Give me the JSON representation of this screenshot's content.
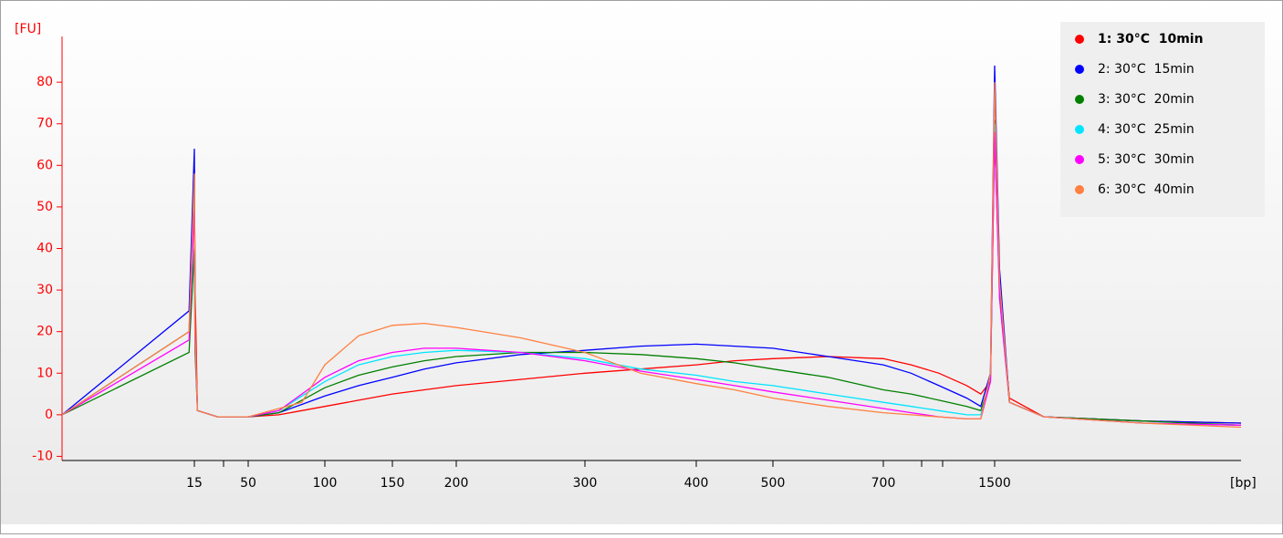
{
  "chart_data": {
    "type": "line",
    "ylabel": "[FU]",
    "xlabel": "[bp]",
    "x": [
      10,
      14.8,
      15,
      15.5,
      17,
      30,
      50,
      70,
      85,
      100,
      125,
      150,
      175,
      200,
      250,
      300,
      350,
      400,
      450,
      500,
      600,
      700,
      900,
      1100,
      1300,
      1400,
      1470,
      1500,
      1510,
      1530,
      1600,
      1800,
      2000
    ],
    "xlim": [
      10,
      2000
    ],
    "xticks": [
      15,
      50,
      100,
      150,
      200,
      300,
      400,
      500,
      700,
      1500
    ],
    "ylim": [
      -11,
      91
    ],
    "yticks": [
      -10,
      0,
      10,
      20,
      30,
      40,
      50,
      60,
      70,
      80
    ],
    "legend": "top-right",
    "series": [
      {
        "name": "1: 30°C  10min",
        "color": "#ff0000",
        "values": [
          0,
          20,
          59,
          30,
          1,
          -0.5,
          -0.5,
          0,
          1,
          2,
          3.5,
          5,
          6,
          7,
          8.5,
          10,
          11,
          12,
          13,
          13.5,
          14,
          13.5,
          12,
          10,
          7,
          5,
          8,
          67,
          30,
          4,
          -0.5,
          -1.5,
          -2
        ]
      },
      {
        "name": "2: 30°C  15min",
        "color": "#0000ff",
        "values": [
          0,
          25,
          64,
          20,
          1,
          -0.5,
          -0.5,
          0.5,
          2.5,
          4.5,
          7,
          9,
          11,
          12.5,
          14.5,
          15.5,
          16.5,
          17,
          16.5,
          16,
          14,
          12,
          10,
          7,
          4,
          2,
          10,
          84,
          35,
          3,
          -0.5,
          -1.5,
          -2
        ]
      },
      {
        "name": "3: 30°C  20min",
        "color": "#008000",
        "values": [
          0,
          15,
          40,
          15,
          1,
          -0.5,
          -0.5,
          0.5,
          3.5,
          6.5,
          9.5,
          11.5,
          13,
          14,
          15,
          15,
          14.5,
          13.5,
          12.5,
          11,
          9,
          6,
          5,
          3.5,
          2,
          1,
          8,
          71,
          30,
          3,
          -0.5,
          -1.5,
          -2.5
        ]
      },
      {
        "name": "4: 30°C  25min",
        "color": "#00e5ff",
        "values": [
          0,
          20,
          55,
          18,
          1,
          -0.5,
          -0.5,
          1,
          4.5,
          8,
          12,
          14,
          15,
          15.5,
          15,
          13.5,
          11,
          9.5,
          8,
          7,
          5,
          3,
          2,
          1,
          0,
          0,
          8,
          70,
          28,
          3,
          -0.5,
          -2,
          -2.5
        ]
      },
      {
        "name": "5: 30°C  30min",
        "color": "#ff00ff",
        "values": [
          0,
          18,
          50,
          18,
          1,
          -0.5,
          -0.5,
          1,
          5,
          9,
          13,
          15,
          16,
          16,
          15,
          13,
          10.5,
          8.5,
          7,
          5.5,
          3.5,
          1.5,
          0.5,
          -0.5,
          -1,
          -1,
          8,
          68,
          28,
          3,
          -0.5,
          -2,
          -2.5
        ]
      },
      {
        "name": "6: 30°C  40min",
        "color": "#ff8040",
        "values": [
          0,
          20,
          58,
          20,
          1,
          -0.5,
          -0.5,
          1.5,
          3,
          12,
          19,
          21.5,
          22,
          21,
          18.5,
          15,
          10,
          7.5,
          6,
          4,
          2,
          0.5,
          0,
          -0.5,
          -1,
          -1,
          10,
          80,
          32,
          3,
          -0.5,
          -2,
          -3
        ]
      }
    ]
  }
}
